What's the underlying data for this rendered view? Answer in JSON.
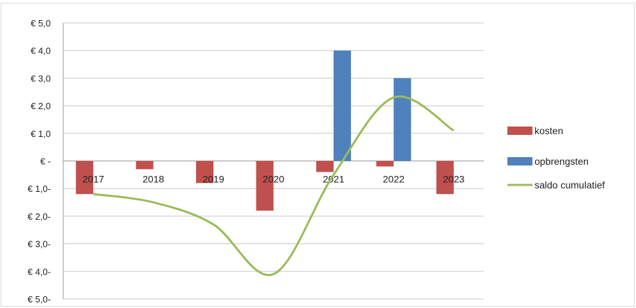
{
  "chart_data": {
    "type": "bar",
    "categories": [
      "2017",
      "2018",
      "2019",
      "2020",
      "2021",
      "2022",
      "2023"
    ],
    "series": [
      {
        "name": "kosten",
        "kind": "bar",
        "color": "#c0504d",
        "values": [
          -1.2,
          -0.3,
          -0.8,
          -1.8,
          -0.4,
          -0.2,
          -1.2
        ]
      },
      {
        "name": "opbrengsten",
        "kind": "bar",
        "color": "#4f81bd",
        "values": [
          0,
          0,
          0,
          0,
          4.0,
          3.0,
          0
        ]
      },
      {
        "name": "saldo cumulatief",
        "kind": "line",
        "color": "#9bbb59",
        "smooth": true,
        "values": [
          -1.2,
          -1.5,
          -2.3,
          -4.1,
          -0.5,
          2.3,
          1.1
        ]
      }
    ],
    "yticks": [
      {
        "value": 5,
        "label": "€ 5,0"
      },
      {
        "value": 4,
        "label": "€ 4,0"
      },
      {
        "value": 3,
        "label": "€ 3,0"
      },
      {
        "value": 2,
        "label": "€ 2,0"
      },
      {
        "value": 1,
        "label": "€ 1,0"
      },
      {
        "value": 0,
        "label": "€ -"
      },
      {
        "value": -1,
        "label": "€ 1,0-"
      },
      {
        "value": -2,
        "label": "€ 2,0-"
      },
      {
        "value": -3,
        "label": "€ 3,0-"
      },
      {
        "value": -4,
        "label": "€ 4,0-"
      },
      {
        "value": -5,
        "label": "€ 5,0-"
      }
    ],
    "ylim": [
      -5,
      5
    ],
    "grid": true,
    "legend_position": "right",
    "title": "",
    "xlabel": "",
    "ylabel": ""
  }
}
